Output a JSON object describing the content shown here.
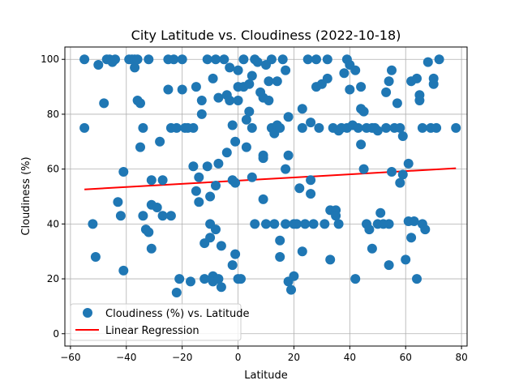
{
  "chart_data": {
    "type": "scatter",
    "title": "City Latitude vs. Cloudiness (2022-10-18)",
    "xlabel": "Latitude",
    "ylabel": "Cloudiness (%)",
    "xlim": [
      -62,
      82
    ],
    "ylim": [
      -4.5,
      104.5
    ],
    "xticks": [
      -60,
      -40,
      -20,
      0,
      20,
      40,
      60,
      80
    ],
    "yticks": [
      0,
      20,
      40,
      60,
      80,
      100
    ],
    "xtick_labels": [
      "−60",
      "−40",
      "−20",
      "0",
      "20",
      "40",
      "60",
      "80"
    ],
    "ytick_labels": [
      "0",
      "20",
      "40",
      "60",
      "80",
      "100"
    ],
    "grid": true,
    "legend_position": "lower-left",
    "series": [
      {
        "name": "Cloudiness (%) vs. Latitude",
        "kind": "scatter",
        "color": "#1f77b4",
        "points": [
          [
            -55,
            100
          ],
          [
            -55,
            75
          ],
          [
            -52,
            40
          ],
          [
            -51,
            28
          ],
          [
            -50,
            98
          ],
          [
            -48,
            84
          ],
          [
            -47,
            100
          ],
          [
            -46,
            100
          ],
          [
            -45,
            99
          ],
          [
            -44,
            100
          ],
          [
            -43,
            48
          ],
          [
            -42,
            43
          ],
          [
            -41,
            59
          ],
          [
            -41,
            23
          ],
          [
            -39,
            100
          ],
          [
            -38,
            100
          ],
          [
            -37,
            100
          ],
          [
            -37,
            97
          ],
          [
            -36,
            100
          ],
          [
            -36,
            85
          ],
          [
            -35,
            84
          ],
          [
            -35,
            68
          ],
          [
            -34,
            75
          ],
          [
            -34,
            43
          ],
          [
            -33,
            38
          ],
          [
            -32,
            37
          ],
          [
            -32,
            100
          ],
          [
            -31,
            56
          ],
          [
            -31,
            47
          ],
          [
            -31,
            31
          ],
          [
            -29,
            46
          ],
          [
            -28,
            70
          ],
          [
            -27,
            56
          ],
          [
            -27,
            43
          ],
          [
            -25,
            100
          ],
          [
            -25,
            89
          ],
          [
            -24,
            75
          ],
          [
            -24,
            43
          ],
          [
            -23,
            100
          ],
          [
            -22,
            75
          ],
          [
            -22,
            15
          ],
          [
            -21,
            20
          ],
          [
            -20,
            89
          ],
          [
            -20,
            100
          ],
          [
            -19,
            75
          ],
          [
            -18,
            75
          ],
          [
            -17,
            19
          ],
          [
            -16,
            61
          ],
          [
            -16,
            75
          ],
          [
            -15,
            90
          ],
          [
            -15,
            52
          ],
          [
            -14,
            57
          ],
          [
            -14,
            48
          ],
          [
            -13,
            85
          ],
          [
            -13,
            80
          ],
          [
            -12,
            33
          ],
          [
            -12,
            20
          ],
          [
            -11,
            61
          ],
          [
            -11,
            100
          ],
          [
            -10,
            40
          ],
          [
            -10,
            35
          ],
          [
            -10,
            50
          ],
          [
            -9,
            21
          ],
          [
            -9,
            19
          ],
          [
            -9,
            93
          ],
          [
            -8,
            100
          ],
          [
            -8,
            54
          ],
          [
            -8,
            38
          ],
          [
            -7,
            62
          ],
          [
            -7,
            20
          ],
          [
            -7,
            86
          ],
          [
            -6,
            32
          ],
          [
            -6,
            17
          ],
          [
            -5,
            100
          ],
          [
            -4,
            87
          ],
          [
            -4,
            66
          ],
          [
            -3,
            97
          ],
          [
            -3,
            85
          ],
          [
            -2,
            56
          ],
          [
            -2,
            76
          ],
          [
            -2,
            25
          ],
          [
            -1,
            55
          ],
          [
            -1,
            70
          ],
          [
            -1,
            29
          ],
          [
            0,
            96
          ],
          [
            0,
            90
          ],
          [
            0,
            85
          ],
          [
            0,
            20
          ],
          [
            1,
            20
          ],
          [
            2,
            90
          ],
          [
            2,
            100
          ],
          [
            3,
            78
          ],
          [
            3,
            68
          ],
          [
            4,
            81
          ],
          [
            4,
            91
          ],
          [
            5,
            75
          ],
          [
            5,
            94
          ],
          [
            5,
            57
          ],
          [
            6,
            40
          ],
          [
            6,
            100
          ],
          [
            7,
            99
          ],
          [
            8,
            88
          ],
          [
            9,
            86
          ],
          [
            9,
            65
          ],
          [
            9,
            49
          ],
          [
            9,
            64
          ],
          [
            10,
            40
          ],
          [
            10,
            98
          ],
          [
            11,
            92
          ],
          [
            11,
            85
          ],
          [
            12,
            75
          ],
          [
            12,
            100
          ],
          [
            13,
            73
          ],
          [
            13,
            40
          ],
          [
            14,
            92
          ],
          [
            14,
            76
          ],
          [
            15,
            75
          ],
          [
            15,
            34
          ],
          [
            15,
            28
          ],
          [
            16,
            100
          ],
          [
            17,
            96
          ],
          [
            17,
            60
          ],
          [
            17,
            40
          ],
          [
            18,
            79
          ],
          [
            18,
            65
          ],
          [
            18,
            19
          ],
          [
            19,
            16
          ],
          [
            20,
            40
          ],
          [
            20,
            21
          ],
          [
            21,
            40
          ],
          [
            22,
            53
          ],
          [
            23,
            82
          ],
          [
            23,
            75
          ],
          [
            23,
            30
          ],
          [
            24,
            40
          ],
          [
            25,
            100
          ],
          [
            26,
            56
          ],
          [
            26,
            51
          ],
          [
            26,
            77
          ],
          [
            27,
            40
          ],
          [
            28,
            90
          ],
          [
            28,
            100
          ],
          [
            29,
            75
          ],
          [
            30,
            91
          ],
          [
            31,
            40
          ],
          [
            32,
            93
          ],
          [
            32,
            100
          ],
          [
            33,
            27
          ],
          [
            33,
            45
          ],
          [
            34,
            75
          ],
          [
            35,
            45
          ],
          [
            35,
            43
          ],
          [
            36,
            74
          ],
          [
            36,
            40
          ],
          [
            37,
            75
          ],
          [
            38,
            95
          ],
          [
            39,
            75
          ],
          [
            39,
            100
          ],
          [
            40,
            89
          ],
          [
            40,
            98
          ],
          [
            41,
            76
          ],
          [
            42,
            96
          ],
          [
            42,
            20
          ],
          [
            43,
            75
          ],
          [
            44,
            90
          ],
          [
            44,
            82
          ],
          [
            44,
            69
          ],
          [
            45,
            81
          ],
          [
            45,
            60
          ],
          [
            46,
            75
          ],
          [
            46,
            40
          ],
          [
            47,
            38
          ],
          [
            48,
            75
          ],
          [
            48,
            31
          ],
          [
            49,
            75
          ],
          [
            50,
            74
          ],
          [
            50,
            40
          ],
          [
            51,
            44
          ],
          [
            52,
            40
          ],
          [
            53,
            75
          ],
          [
            53,
            88
          ],
          [
            54,
            92
          ],
          [
            54,
            40
          ],
          [
            54,
            25
          ],
          [
            55,
            96
          ],
          [
            55,
            59
          ],
          [
            56,
            75
          ],
          [
            57,
            84
          ],
          [
            58,
            75
          ],
          [
            58,
            55
          ],
          [
            59,
            72
          ],
          [
            59,
            58
          ],
          [
            60,
            27
          ],
          [
            61,
            62
          ],
          [
            61,
            41
          ],
          [
            62,
            35
          ],
          [
            62,
            92
          ],
          [
            63,
            41
          ],
          [
            64,
            93
          ],
          [
            64,
            20
          ],
          [
            65,
            87
          ],
          [
            65,
            85
          ],
          [
            66,
            40
          ],
          [
            66,
            75
          ],
          [
            67,
            38
          ],
          [
            68,
            99
          ],
          [
            69,
            75
          ],
          [
            70,
            93
          ],
          [
            70,
            91
          ],
          [
            71,
            75
          ],
          [
            72,
            100
          ],
          [
            78,
            75
          ]
        ]
      }
    ],
    "regression": {
      "name": "Linear Regression",
      "color": "#ff0000",
      "x": [
        -55,
        78
      ],
      "y": [
        52.6,
        60.3
      ]
    }
  }
}
